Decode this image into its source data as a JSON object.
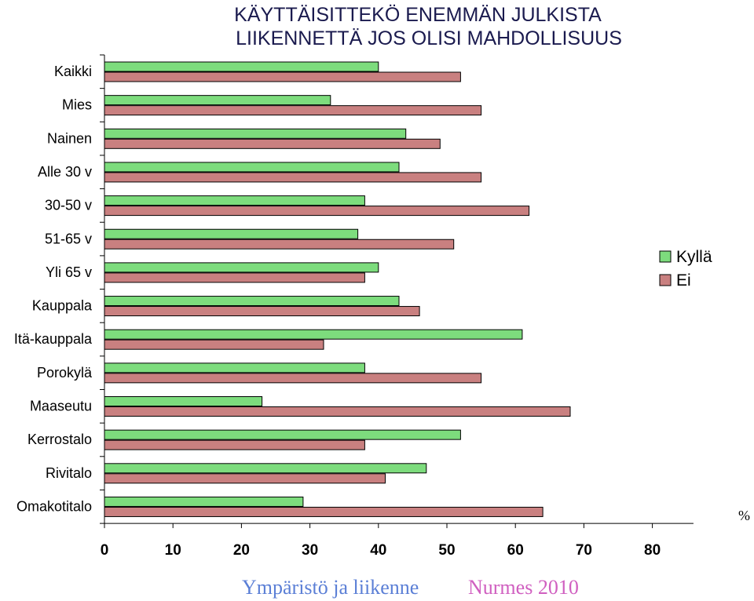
{
  "chart_data": {
    "type": "bar",
    "orientation": "horizontal",
    "title_lines": [
      "KÄYTTÄISITTEKÖ ENEMMÄN JULKISTA",
      "LIIKENNETTÄ JOS OLISI MAHDOLLISUUS"
    ],
    "categories": [
      "Kaikki",
      "Mies",
      "Nainen",
      "Alle 30 v",
      "30-50 v",
      "51-65 v",
      "Yli 65 v",
      "Kauppala",
      "Itä-kauppala",
      "Porokylä",
      "Maaseutu",
      "Kerrostalo",
      "Rivitalo",
      "Omakotitalo"
    ],
    "series": [
      {
        "name": "Kyllä",
        "color": "#7ddc7d",
        "values": [
          40,
          33,
          44,
          43,
          38,
          37,
          40,
          43,
          61,
          38,
          23,
          52,
          47,
          29
        ]
      },
      {
        "name": "Ei",
        "color": "#c98080",
        "values": [
          52,
          55,
          49,
          55,
          62,
          51,
          38,
          46,
          32,
          55,
          68,
          38,
          41,
          64
        ]
      }
    ],
    "xlim": [
      0,
      86
    ],
    "xticks": [
      "0",
      "10",
      "20",
      "30",
      "40",
      "50",
      "60",
      "70",
      "80"
    ],
    "unit_label": "%",
    "legend_position": "right",
    "grid": false
  },
  "footer": {
    "left": "Ympäristö ja liikenne",
    "left_color": "#5b7fd6",
    "right": "Nurmes 2010",
    "right_color": "#d05fc0"
  }
}
